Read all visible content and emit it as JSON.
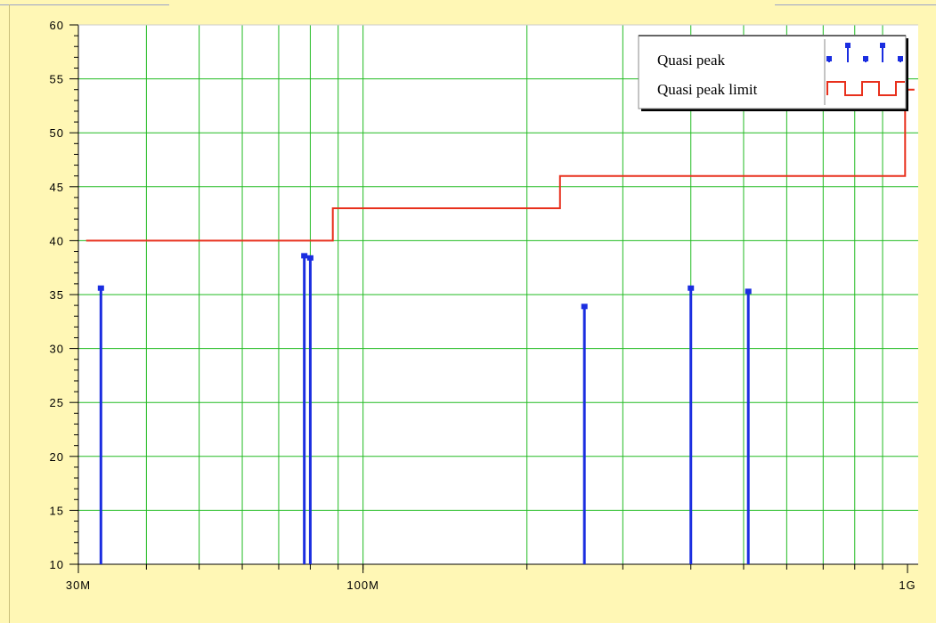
{
  "chart_data": {
    "type": "line",
    "title": "",
    "xlabel": "",
    "ylabel": "",
    "x_scale": "log",
    "xlim": [
      30000000,
      1000000000
    ],
    "ylim": [
      10,
      60
    ],
    "grid": true,
    "legend_position": "top-right",
    "y_ticks": [
      {
        "value": 10,
        "label": "10"
      },
      {
        "value": 15,
        "label": "15"
      },
      {
        "value": 20,
        "label": "20"
      },
      {
        "value": 25,
        "label": "25"
      },
      {
        "value": 30,
        "label": "30"
      },
      {
        "value": 35,
        "label": "35"
      },
      {
        "value": 40,
        "label": "40"
      },
      {
        "value": 45,
        "label": "45"
      },
      {
        "value": 50,
        "label": "50"
      },
      {
        "value": 55,
        "label": "55"
      },
      {
        "value": 60,
        "label": "60"
      }
    ],
    "x_tick_labels": [
      {
        "value": 30000000,
        "label": "30M"
      },
      {
        "value": 100000000,
        "label": "100M"
      },
      {
        "value": 1000000000,
        "label": "1G"
      }
    ],
    "x_gridlines": [
      40000000,
      50000000,
      60000000,
      70000000,
      80000000,
      90000000,
      100000000,
      200000000,
      300000000,
      400000000,
      500000000,
      600000000,
      700000000,
      800000000,
      900000000
    ],
    "series": [
      {
        "name": "Quasi peak",
        "color": "#1a2de0",
        "style": "stem",
        "points": [
          {
            "x": 33000000,
            "y": 35.6
          },
          {
            "x": 78000000,
            "y": 38.6
          },
          {
            "x": 80000000,
            "y": 38.4
          },
          {
            "x": 255000000,
            "y": 33.9
          },
          {
            "x": 400000000,
            "y": 35.6
          },
          {
            "x": 510000000,
            "y": 35.3
          }
        ]
      },
      {
        "name": "Quasi peak limit",
        "color": "#e8301c",
        "style": "step",
        "points": [
          {
            "x": 31000000,
            "y": 40
          },
          {
            "x": 88000000,
            "y": 40
          },
          {
            "x": 88000000,
            "y": 43
          },
          {
            "x": 230000000,
            "y": 43
          },
          {
            "x": 230000000,
            "y": 46
          },
          {
            "x": 990000000,
            "y": 46
          },
          {
            "x": 990000000,
            "y": 54
          },
          {
            "x": 1030000000,
            "y": 54
          }
        ]
      }
    ]
  },
  "colors": {
    "background": "#fff7b5",
    "plot_background": "#ffffff",
    "grid": "#22bb22",
    "axis": "#000000"
  }
}
